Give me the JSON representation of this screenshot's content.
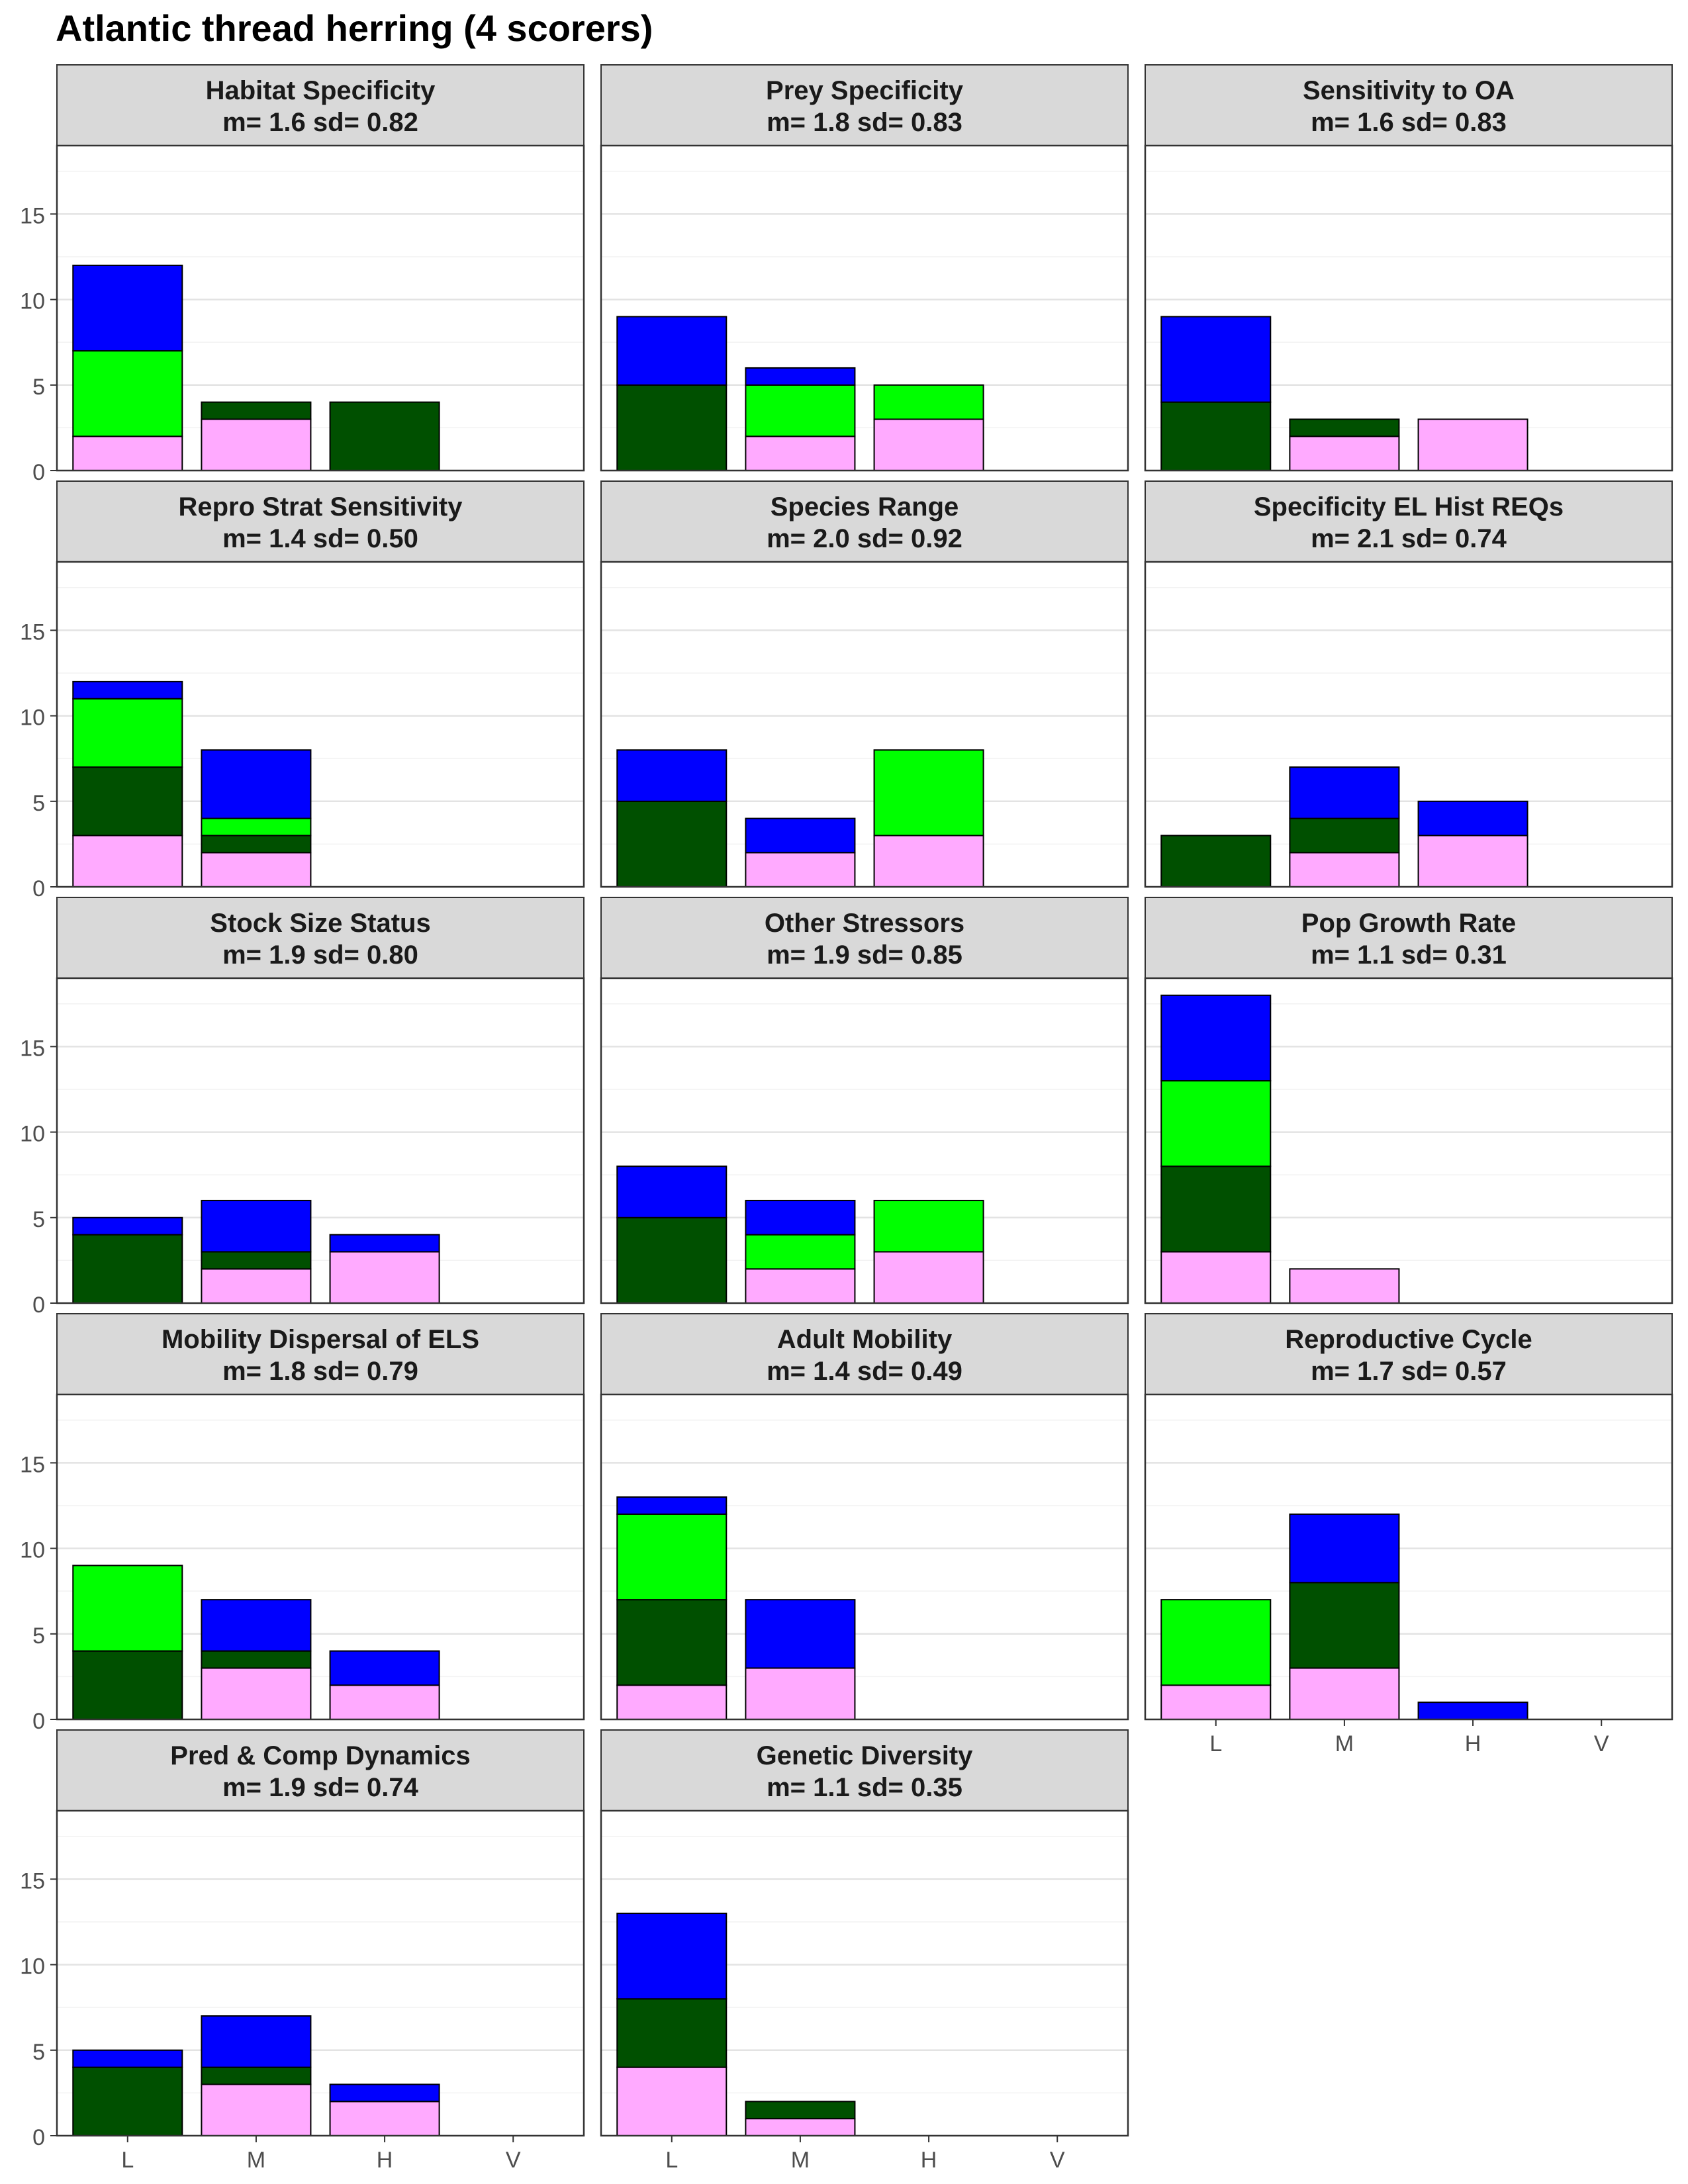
{
  "title": "Atlantic thread herring (4 scorers)",
  "chart_data": {
    "type": "bar",
    "stacked": true,
    "title": "Atlantic thread herring (4 scorers)",
    "categories": [
      "L",
      "M",
      "H",
      "V"
    ],
    "ylim": [
      0,
      19
    ],
    "yticks": [
      0,
      5,
      10,
      15
    ],
    "grid": true,
    "legend": "none",
    "stack_colors": [
      "#ffaaff",
      "#005000",
      "#00ff00",
      "#0000ff"
    ],
    "panels": [
      {
        "name": "Habitat Specificity",
        "stats": "m= 1.6  sd= 0.82",
        "stacks": [
          [
            2,
            0,
            5,
            5
          ],
          [
            3,
            1,
            0,
            0
          ],
          [
            0,
            4,
            0,
            0
          ],
          [
            0,
            0,
            0,
            0
          ]
        ]
      },
      {
        "name": "Prey Specificity",
        "stats": "m= 1.8  sd= 0.83",
        "stacks": [
          [
            0,
            5,
            0,
            4
          ],
          [
            2,
            0,
            3,
            1
          ],
          [
            3,
            0,
            2,
            0
          ],
          [
            0,
            0,
            0,
            0
          ]
        ]
      },
      {
        "name": "Sensitivity to OA",
        "stats": "m= 1.6  sd= 0.83",
        "stacks": [
          [
            0,
            4,
            0,
            5
          ],
          [
            2,
            1,
            0,
            0
          ],
          [
            3,
            0,
            0,
            0
          ],
          [
            0,
            0,
            0,
            0
          ]
        ]
      },
      {
        "name": "Repro Strat Sensitivity",
        "stats": "m= 1.4  sd= 0.50",
        "stacks": [
          [
            3,
            4,
            4,
            1
          ],
          [
            2,
            1,
            1,
            4
          ],
          [
            0,
            0,
            0,
            0
          ],
          [
            0,
            0,
            0,
            0
          ]
        ]
      },
      {
        "name": "Species Range",
        "stats": "m= 2.0  sd= 0.92",
        "stacks": [
          [
            0,
            5,
            0,
            3
          ],
          [
            2,
            0,
            0,
            2
          ],
          [
            3,
            0,
            5,
            0
          ],
          [
            0,
            0,
            0,
            0
          ]
        ]
      },
      {
        "name": "Specificity EL Hist REQs",
        "stats": "m= 2.1  sd= 0.74",
        "stacks": [
          [
            0,
            3,
            0,
            0
          ],
          [
            2,
            2,
            0,
            3
          ],
          [
            3,
            0,
            0,
            2
          ],
          [
            0,
            0,
            0,
            0
          ]
        ]
      },
      {
        "name": "Stock Size Status",
        "stats": "m= 1.9  sd= 0.80",
        "stacks": [
          [
            0,
            4,
            0,
            1
          ],
          [
            2,
            1,
            0,
            3
          ],
          [
            3,
            0,
            0,
            1
          ],
          [
            0,
            0,
            0,
            0
          ]
        ]
      },
      {
        "name": "Other Stressors",
        "stats": "m= 1.9  sd= 0.85",
        "stacks": [
          [
            0,
            5,
            0,
            3
          ],
          [
            2,
            0,
            2,
            2
          ],
          [
            3,
            0,
            3,
            0
          ],
          [
            0,
            0,
            0,
            0
          ]
        ]
      },
      {
        "name": "Pop Growth Rate",
        "stats": "m= 1.1  sd= 0.31",
        "stacks": [
          [
            3,
            5,
            5,
            5
          ],
          [
            2,
            0,
            0,
            0
          ],
          [
            0,
            0,
            0,
            0
          ],
          [
            0,
            0,
            0,
            0
          ]
        ]
      },
      {
        "name": "Mobility Dispersal of ELS",
        "stats": "m= 1.8  sd= 0.79",
        "stacks": [
          [
            0,
            4,
            5,
            0
          ],
          [
            3,
            1,
            0,
            3
          ],
          [
            2,
            0,
            0,
            2
          ],
          [
            0,
            0,
            0,
            0
          ]
        ]
      },
      {
        "name": "Adult Mobility",
        "stats": "m= 1.4  sd= 0.49",
        "stacks": [
          [
            2,
            5,
            5,
            1
          ],
          [
            3,
            0,
            0,
            4
          ],
          [
            0,
            0,
            0,
            0
          ],
          [
            0,
            0,
            0,
            0
          ]
        ]
      },
      {
        "name": "Reproductive Cycle",
        "stats": "m= 1.7  sd= 0.57",
        "stacks": [
          [
            2,
            0,
            5,
            0
          ],
          [
            3,
            5,
            0,
            4
          ],
          [
            0,
            0,
            0,
            1
          ],
          [
            0,
            0,
            0,
            0
          ]
        ]
      },
      {
        "name": "Pred & Comp Dynamics",
        "stats": "m= 1.9  sd= 0.74",
        "stacks": [
          [
            0,
            4,
            0,
            1
          ],
          [
            3,
            1,
            0,
            3
          ],
          [
            2,
            0,
            0,
            1
          ],
          [
            0,
            0,
            0,
            0
          ]
        ]
      },
      {
        "name": "Genetic Diversity",
        "stats": "m= 1.1  sd= 0.35",
        "stacks": [
          [
            4,
            4,
            0,
            5
          ],
          [
            1,
            1,
            0,
            0
          ],
          [
            0,
            0,
            0,
            0
          ],
          [
            0,
            0,
            0,
            0
          ]
        ]
      }
    ]
  }
}
